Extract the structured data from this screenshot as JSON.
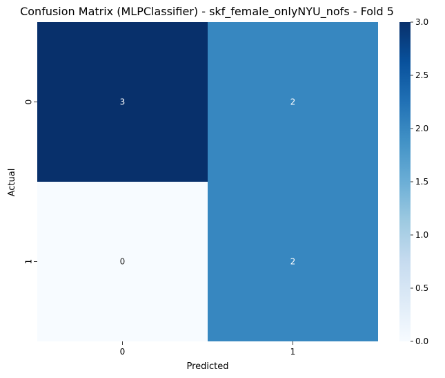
{
  "chart_data": {
    "type": "heatmap",
    "title": "Confusion Matrix (MLPClassifier) - skf_female_onlyNYU_nofs - Fold 5",
    "xlabel": "Predicted",
    "ylabel": "Actual",
    "x_categories": [
      "0",
      "1"
    ],
    "y_categories": [
      "0",
      "1"
    ],
    "values": [
      [
        3,
        2
      ],
      [
        0,
        2
      ]
    ],
    "colormap": "Blues",
    "colorbar": {
      "range": [
        0.0,
        3.0
      ],
      "ticks": [
        "0.0",
        "0.5",
        "1.0",
        "1.5",
        "2.0",
        "2.5",
        "3.0"
      ]
    },
    "grid": false,
    "annotations": true
  },
  "colors": {
    "low": "#f7fbff",
    "mid": "#3787c0",
    "high": "#08306b",
    "annot_dark_bg": "#ffffff"
  }
}
